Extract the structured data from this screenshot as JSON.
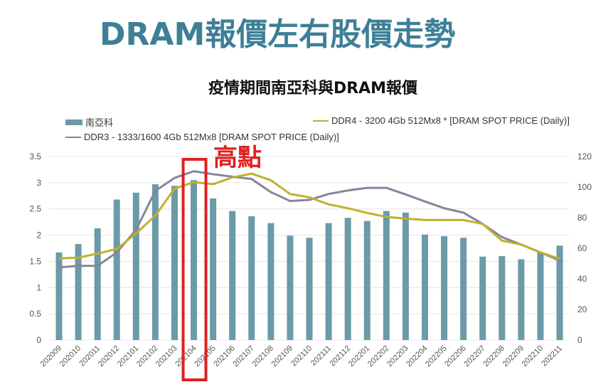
{
  "slide_title": "DRAM報價左右股價走勢",
  "annotation": {
    "text": "高點",
    "color": "#e02020",
    "category": "202104"
  },
  "colors": {
    "bar": "#6b9aa8",
    "ddr4": "#bdb22e",
    "ddr3": "#8a8399",
    "grid": "#e4e4e4",
    "title": "#3e7f97"
  },
  "chart_data": {
    "type": "bar+line",
    "title": "疫情期間南亞科與DRAM報價",
    "legend_position": "top",
    "grid": true,
    "categories": [
      "202009",
      "202010",
      "202011",
      "202012",
      "202101",
      "202102",
      "202103",
      "202104",
      "202105",
      "202106",
      "202107",
      "202108",
      "202109",
      "202110",
      "202111",
      "202112",
      "202201",
      "202202",
      "202203",
      "202204",
      "202205",
      "202206",
      "202207",
      "202208",
      "202209",
      "202210",
      "202211"
    ],
    "y_left": {
      "ylim": [
        0,
        3.5
      ],
      "ticks": [
        "0",
        "0.5",
        "1",
        "1.5",
        "2",
        "2.5",
        "3",
        "3.5"
      ]
    },
    "y_right": {
      "ylim": [
        0,
        120
      ],
      "ticks": [
        "0",
        "20",
        "40",
        "60",
        "80",
        "100",
        "120"
      ]
    },
    "series": [
      {
        "name": "南亞科",
        "type": "bar",
        "axis": "left",
        "values": [
          1.67,
          1.83,
          2.13,
          2.68,
          2.81,
          2.97,
          2.94,
          3.05,
          2.7,
          2.46,
          2.36,
          2.23,
          1.99,
          1.95,
          2.23,
          2.33,
          2.27,
          2.46,
          2.43,
          2.01,
          1.98,
          1.95,
          1.59,
          1.6,
          1.54,
          1.67,
          1.8
        ]
      },
      {
        "name": "DDR4 - 3200 4Gb 512Mx8 * [DRAM SPOT PRICE (Daily)]",
        "type": "line",
        "axis": "right",
        "values": [
          53.4,
          53.9,
          56.5,
          59.6,
          69.7,
          81.3,
          99.0,
          103.2,
          101.9,
          106.3,
          108.8,
          104.5,
          95.5,
          93.3,
          88.7,
          86.2,
          83.1,
          80.5,
          79.4,
          78.5,
          78.5,
          78.5,
          75.9,
          65.0,
          62.4,
          57.3,
          53.0
        ]
      },
      {
        "name": "DDR3 - 1333/1600 4Gb 512Mx8 [DRAM SPOT PRICE (Daily)]",
        "type": "line",
        "axis": "right",
        "values": [
          47.5,
          48.5,
          48.5,
          57.3,
          72.0,
          97.5,
          106.0,
          110.4,
          108.4,
          106.8,
          105.3,
          96.7,
          90.9,
          91.6,
          95.5,
          97.8,
          99.5,
          99.5,
          95.2,
          90.6,
          86.2,
          83.3,
          75.9,
          67.3,
          62.4,
          57.3,
          51.9
        ]
      }
    ]
  }
}
